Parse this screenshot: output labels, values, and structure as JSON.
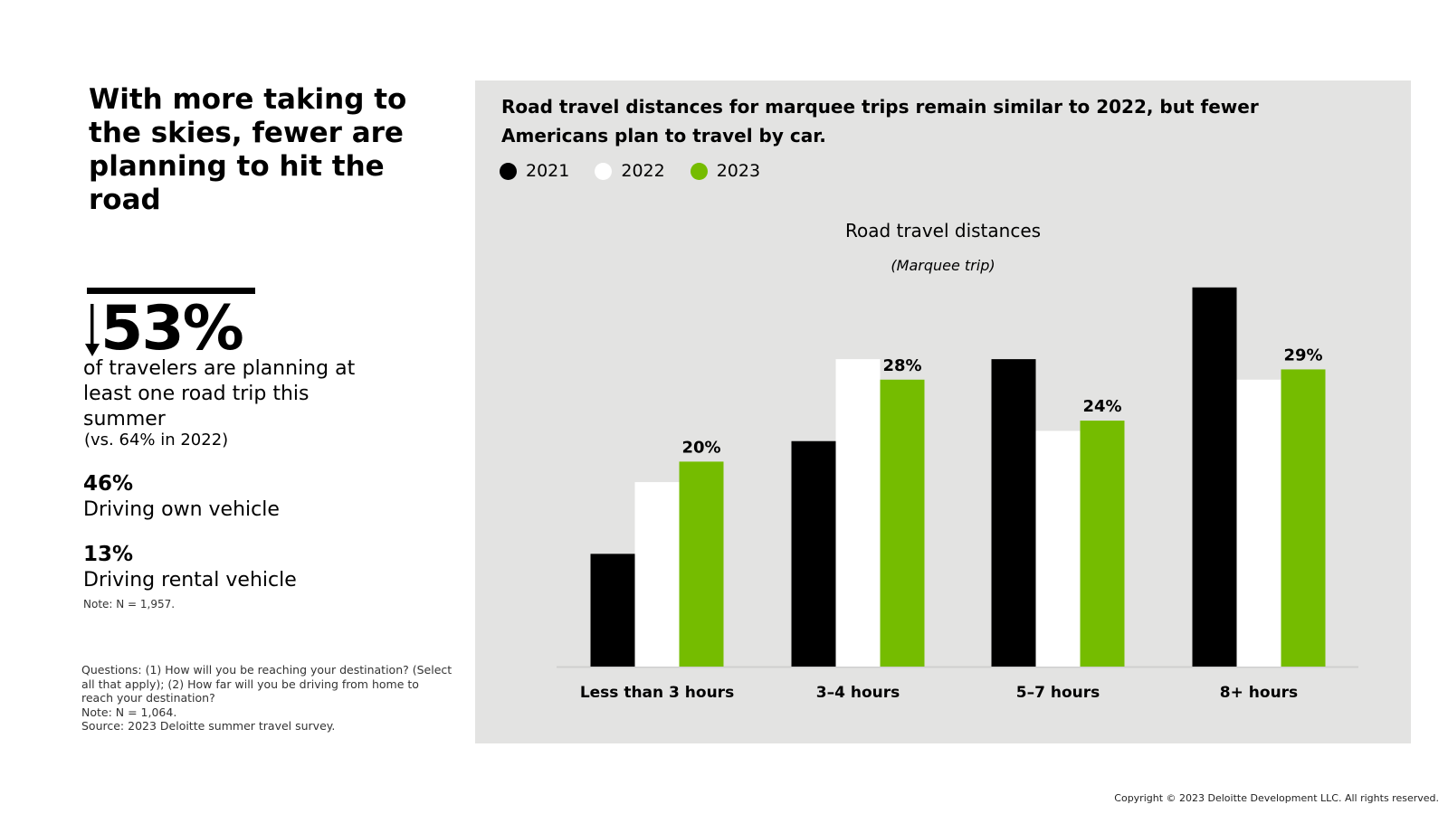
{
  "headline": "With more taking to the skies, fewer are planning to hit the road",
  "highlight": {
    "direction_icon": "arrow-down-icon",
    "value": "53%",
    "description": "of travelers are planning at least one road trip this summer",
    "comparison": "(vs. 64% in 2022)"
  },
  "stats": [
    {
      "value": "46%",
      "label": "Driving own vehicle"
    },
    {
      "value": "13%",
      "label": "Driving rental vehicle"
    }
  ],
  "stats_note": "Note: N = 1,957.",
  "footnotes": {
    "questions": "Questions: (1) How will you be reaching your destination? (Select all that apply); (2) How far will you be driving from home to reach your destination?",
    "note": "Note: N = 1,064.",
    "source": "Source: 2023 Deloitte summer travel survey."
  },
  "copyright": "Copyright © 2023 Deloitte Development LLC. All rights reserved.",
  "chart_data": {
    "type": "bar",
    "heading": "Road travel distances for marquee trips remain similar to 2022, but fewer Americans plan to travel by car.",
    "title": "Road travel distances",
    "subtitle": "(Marquee trip)",
    "categories": [
      "Less than 3 hours",
      "3–4 hours",
      "5–7 hours",
      "8+ hours"
    ],
    "series": [
      {
        "name": "2021",
        "color": "#000000",
        "values": [
          11,
          22,
          30,
          37
        ],
        "labeled": false
      },
      {
        "name": "2022",
        "color": "#ffffff",
        "values": [
          18,
          30,
          23,
          28
        ],
        "labeled": false
      },
      {
        "name": "2023",
        "color": "#75bc00",
        "values": [
          20,
          28,
          24,
          29
        ],
        "labeled": true
      }
    ],
    "value_labels": [
      "20%",
      "28%",
      "24%",
      "29%"
    ],
    "ylim": [
      0,
      40
    ],
    "grid": false,
    "legend": "top-left"
  }
}
